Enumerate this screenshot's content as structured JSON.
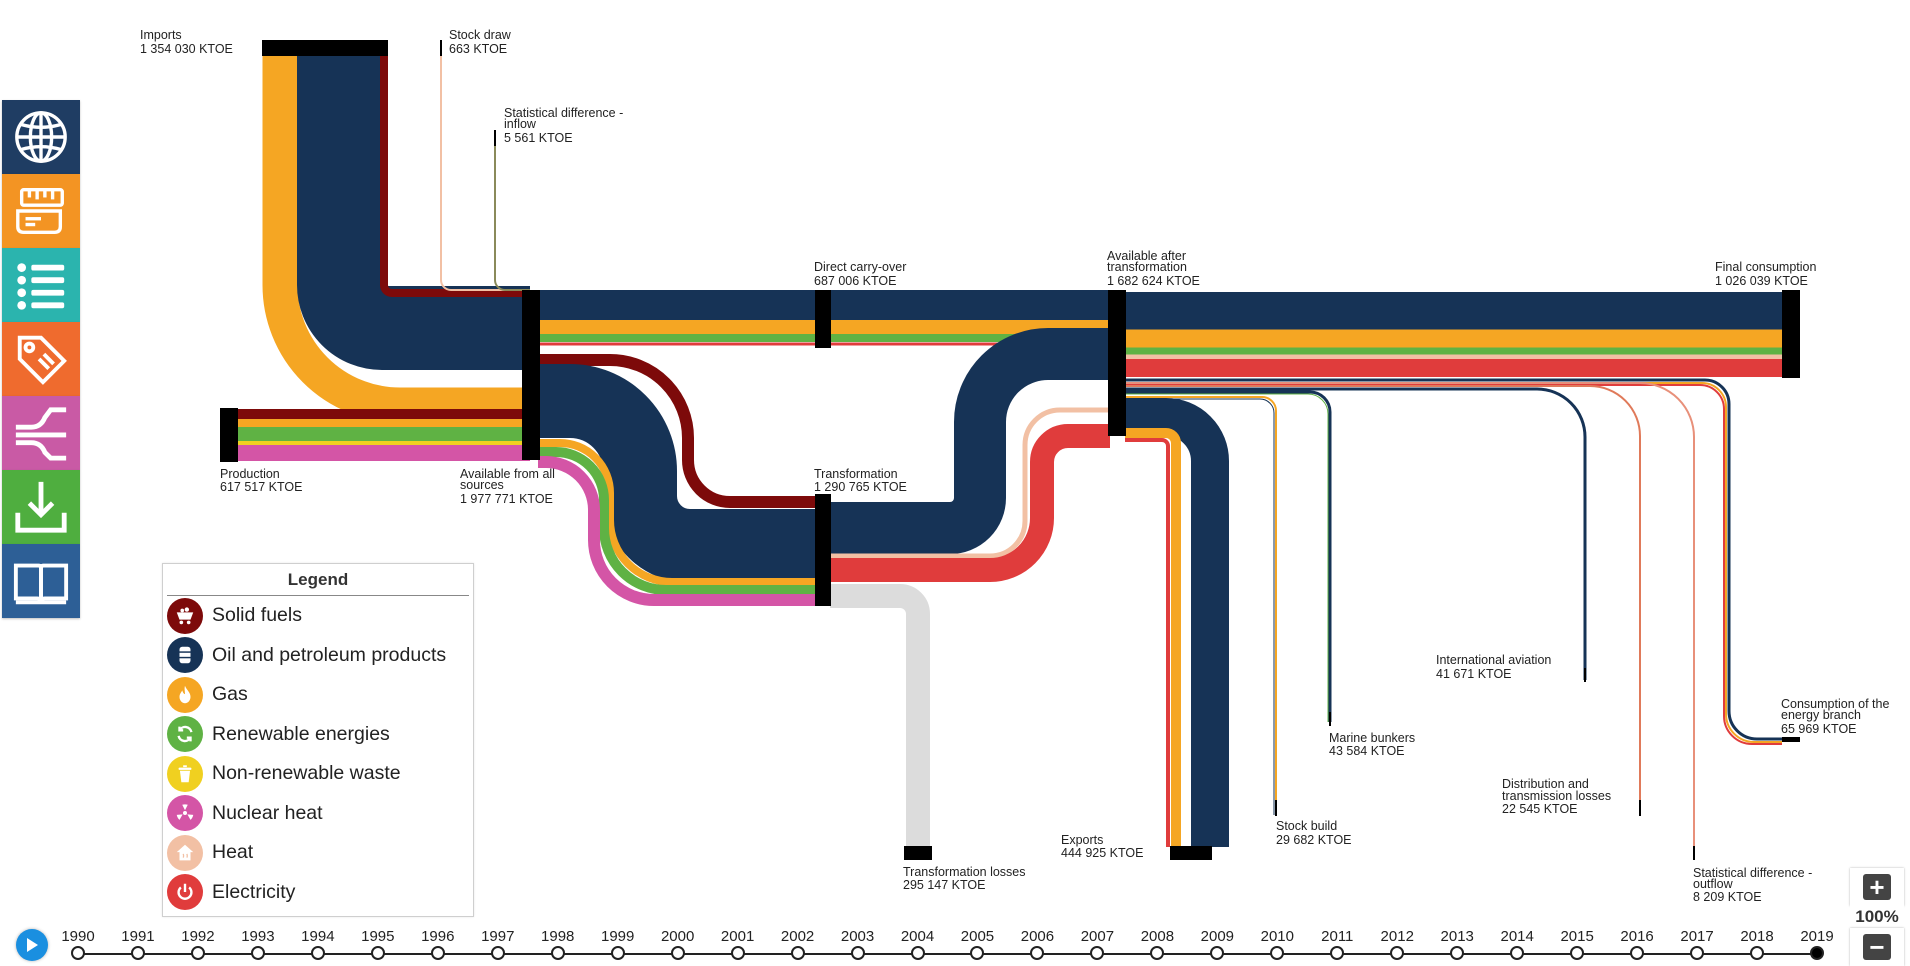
{
  "colors": {
    "solid": "#7d0a0a",
    "oil": "#163356",
    "gas": "#f5a623",
    "renew": "#5fb244",
    "nonrenew": "#f0d020",
    "nuclear": "#d455a6",
    "heat": "#f2c0a4",
    "elec": "#e03c3c",
    "loss": "#dcdcdc",
    "node": "#000000"
  },
  "sidebar": [
    {
      "name": "globe-icon",
      "color": "#1f3d63"
    },
    {
      "name": "ruler-icon",
      "color": "#f39423"
    },
    {
      "name": "list-icon",
      "color": "#2bb4ae"
    },
    {
      "name": "tag-icon",
      "color": "#ef6b2e"
    },
    {
      "name": "flow-split-icon",
      "color": "#c95aa5"
    },
    {
      "name": "download-icon",
      "color": "#4fae3f"
    },
    {
      "name": "book-icon",
      "color": "#2d5f96"
    }
  ],
  "nodes": {
    "imports": {
      "title": "Imports",
      "value": "1 354 030 KTOE"
    },
    "stock_draw": {
      "title": "Stock draw",
      "value": "663 KTOE"
    },
    "stat_inflow": {
      "line1": "Statistical difference -",
      "line2": "inflow",
      "value": "5 561 KTOE"
    },
    "production": {
      "title": "Production",
      "value": "617 517 KTOE"
    },
    "available_all": {
      "line1": "Available from all",
      "line2": "sources",
      "value": "1 977 771 KTOE"
    },
    "direct_carry": {
      "title": "Direct carry-over",
      "value": "687 006 KTOE"
    },
    "transformation": {
      "title": "Transformation",
      "value": "1 290 765 KTOE"
    },
    "available_after": {
      "line1": "Available after",
      "line2": "transformation",
      "value": "1 682 624 KTOE"
    },
    "final_consumption": {
      "title": "Final consumption",
      "value": "1 026 039 KTOE"
    },
    "transformation_losses": {
      "title": "Transformation losses",
      "value": "295 147 KTOE"
    },
    "exports": {
      "title": "Exports",
      "value": "444 925 KTOE"
    },
    "stock_build": {
      "title": "Stock build",
      "value": "29 682 KTOE"
    },
    "marine_bunkers": {
      "title": "Marine bunkers",
      "value": "43 584 KTOE"
    },
    "intl_aviation": {
      "title": "International aviation",
      "value": "41 671 KTOE"
    },
    "distribution_losses": {
      "line1": "Distribution and",
      "line2": "transmission losses",
      "value": "22 545 KTOE"
    },
    "stat_outflow": {
      "line1": "Statistical difference -",
      "line2": "outflow",
      "value": "8 209 KTOE"
    },
    "energy_branch": {
      "line1": "Consumption of the",
      "line2": "energy branch",
      "value": "65 969 KTOE"
    }
  },
  "legend": {
    "title": "Legend",
    "items": [
      {
        "label": "Solid fuels",
        "icon": "coal-cart-icon",
        "color": "#7d0a0a"
      },
      {
        "label": "Oil and petroleum products",
        "icon": "oil-barrel-icon",
        "color": "#163356"
      },
      {
        "label": "Gas",
        "icon": "flame-icon",
        "color": "#f5a623"
      },
      {
        "label": "Renewable energies",
        "icon": "recycle-arrows-icon",
        "color": "#5fb244"
      },
      {
        "label": "Non-renewable waste",
        "icon": "waste-bin-icon",
        "color": "#f0d020"
      },
      {
        "label": "Nuclear heat",
        "icon": "radiation-icon",
        "color": "#d455a6"
      },
      {
        "label": "Heat",
        "icon": "heat-house-icon",
        "color": "#f2c0a4"
      },
      {
        "label": "Electricity",
        "icon": "power-icon",
        "color": "#e03c3c"
      }
    ]
  },
  "zoom": {
    "plus": "+",
    "minus": "−",
    "level": "100%"
  },
  "timeline": {
    "years": [
      "1990",
      "1991",
      "1992",
      "1993",
      "1994",
      "1995",
      "1996",
      "1997",
      "1998",
      "1999",
      "2000",
      "2001",
      "2002",
      "2003",
      "2004",
      "2005",
      "2006",
      "2007",
      "2008",
      "2009",
      "2010",
      "2011",
      "2012",
      "2013",
      "2014",
      "2015",
      "2016",
      "2017",
      "2018",
      "2019"
    ],
    "selected": "2019"
  }
}
